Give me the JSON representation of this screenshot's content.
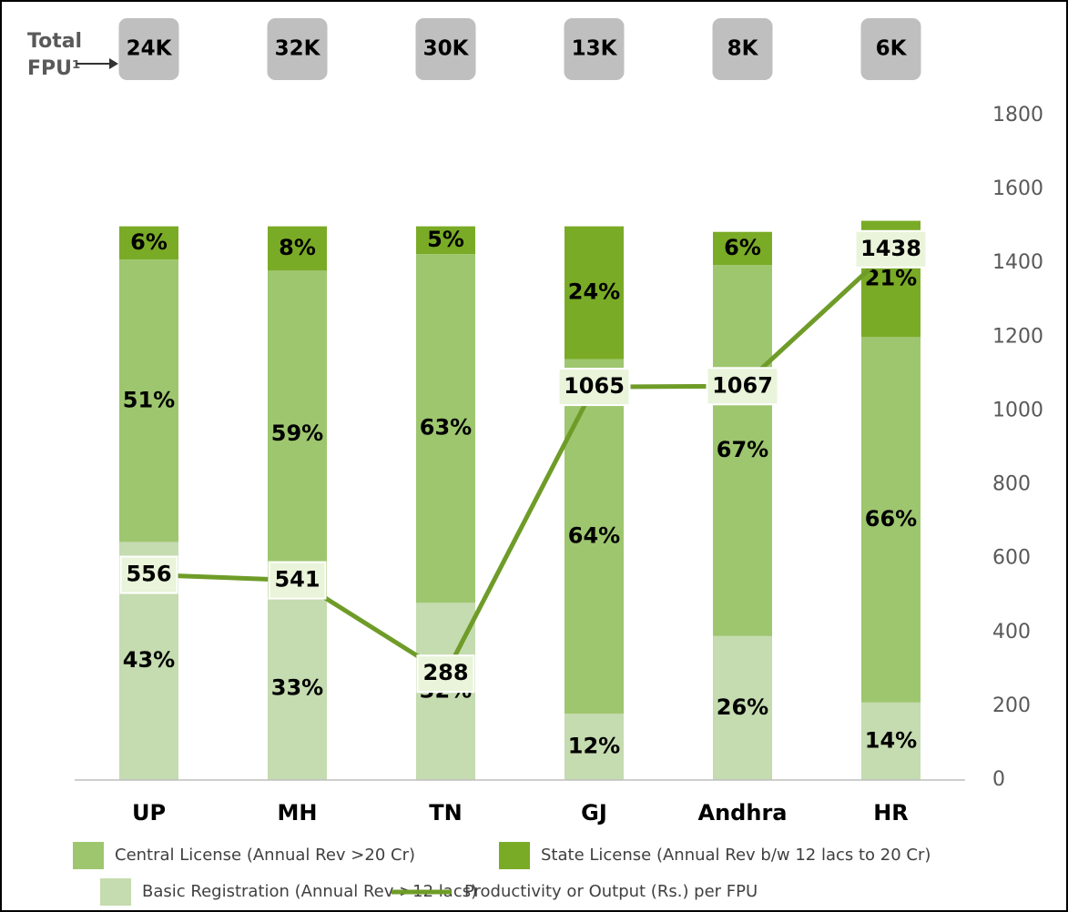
{
  "chart_data": {
    "type": "bar",
    "categories": [
      "UP",
      "MH",
      "TN",
      "GJ",
      "Andhra",
      "HR"
    ],
    "fpu_title": [
      "Total",
      "FPU¹"
    ],
    "fpu_labels": [
      "24K",
      "32K",
      "30K",
      "13K",
      "8K",
      "6K"
    ],
    "ylim": [
      0,
      120
    ],
    "y2lim": [
      0,
      1800
    ],
    "y2ticks": [
      0,
      200,
      400,
      600,
      800,
      1000,
      1200,
      1400,
      1600,
      1800
    ],
    "series": [
      {
        "name": "Basic Registration (Annual Rev >12 lacs)",
        "color": "#c5dbb0",
        "values": [
          43,
          33,
          32,
          12,
          26,
          14
        ],
        "value_labels": [
          "43%",
          "33%",
          "32%",
          "12%",
          "26%",
          "14%"
        ]
      },
      {
        "name": "Central License (Annual Rev >20 Cr)",
        "color": "#9ec66f",
        "values": [
          51,
          59,
          63,
          64,
          67,
          66
        ],
        "value_labels": [
          "51%",
          "59%",
          "63%",
          "64%",
          "67%",
          "66%"
        ]
      },
      {
        "name": "State License (Annual Rev b/w 12 lacs to 20 Cr)",
        "color": "#7aab26",
        "values": [
          6,
          8,
          5,
          24,
          6,
          21
        ],
        "value_labels": [
          "6%",
          "8%",
          "5%",
          "24%",
          "6%",
          "21%"
        ]
      },
      {
        "name": "Productivity or Output (Rs.) per FPU",
        "type": "line",
        "axis": "y2",
        "color": "#6f9c28",
        "values": [
          556,
          541,
          288,
          1065,
          1067,
          1438
        ]
      }
    ]
  }
}
